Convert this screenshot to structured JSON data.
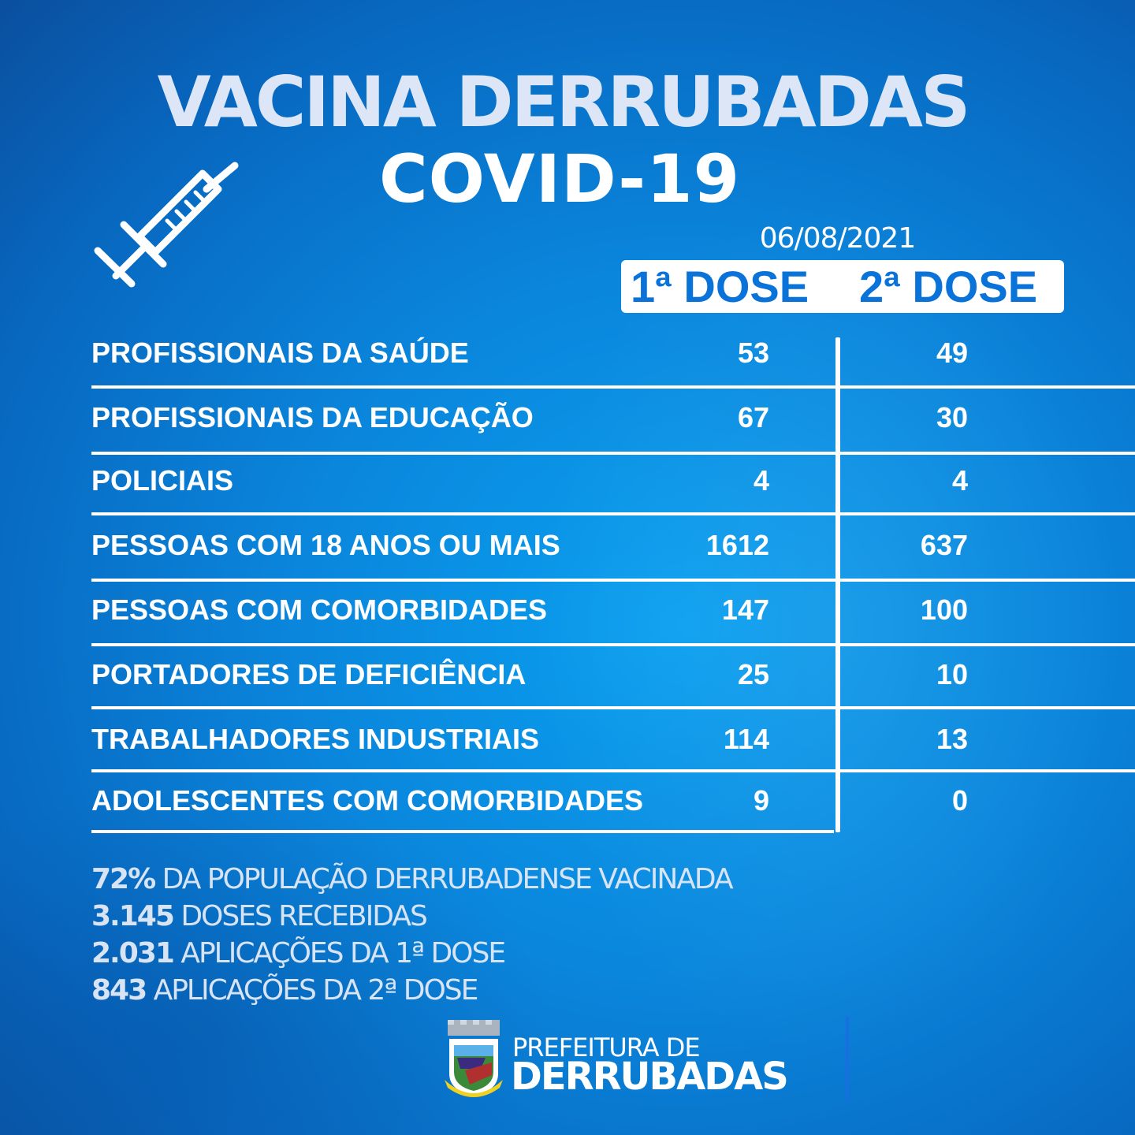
{
  "header": {
    "title": "VACINA DERRUBADAS",
    "subtitle": "COVID-19",
    "date": "06/08/2021",
    "dose1_label": "1ª DOSE",
    "dose2_label": "2ª DOSE"
  },
  "icons": {
    "syringe": "syringe-icon"
  },
  "rows": [
    {
      "label": "PROFISSIONAIS DA SAÚDE",
      "dose1": "53",
      "dose2": "49"
    },
    {
      "label": "PROFISSIONAIS DA EDUCAÇÃO",
      "dose1": "67",
      "dose2": "30"
    },
    {
      "label": "POLICIAIS",
      "dose1": "4",
      "dose2": "4"
    },
    {
      "label": "PESSOAS COM 18 ANOS OU MAIS",
      "dose1": "1612",
      "dose2": "637"
    },
    {
      "label": "PESSOAS COM COMORBIDADES",
      "dose1": "147",
      "dose2": "100"
    },
    {
      "label": "PORTADORES DE DEFICIÊNCIA",
      "dose1": "25",
      "dose2": "10"
    },
    {
      "label": "TRABALHADORES INDUSTRIAIS",
      "dose1": "114",
      "dose2": "13"
    },
    {
      "label": "ADOLESCENTES COM COMORBIDADES",
      "dose1": "9",
      "dose2": "0"
    }
  ],
  "stats": [
    {
      "value": "72%",
      "text": " DA POPULAÇÃO DERRUBADENSE VACINADA"
    },
    {
      "value": "3.145",
      "text": " DOSES RECEBIDAS"
    },
    {
      "value": "2.031",
      "text": " APLICAÇÕES DA 1ª DOSE"
    },
    {
      "value": "843",
      "text": " APLICAÇÕES DA 2ª DOSE"
    }
  ],
  "footer": {
    "line1": "PREFEITURA DE",
    "line2": "DERRUBADAS",
    "logo_text": "DERRUBADAS"
  },
  "colors": {
    "accent": "#0a73d9",
    "background": "#0a86dc",
    "text_light": "#d8e4f4"
  }
}
